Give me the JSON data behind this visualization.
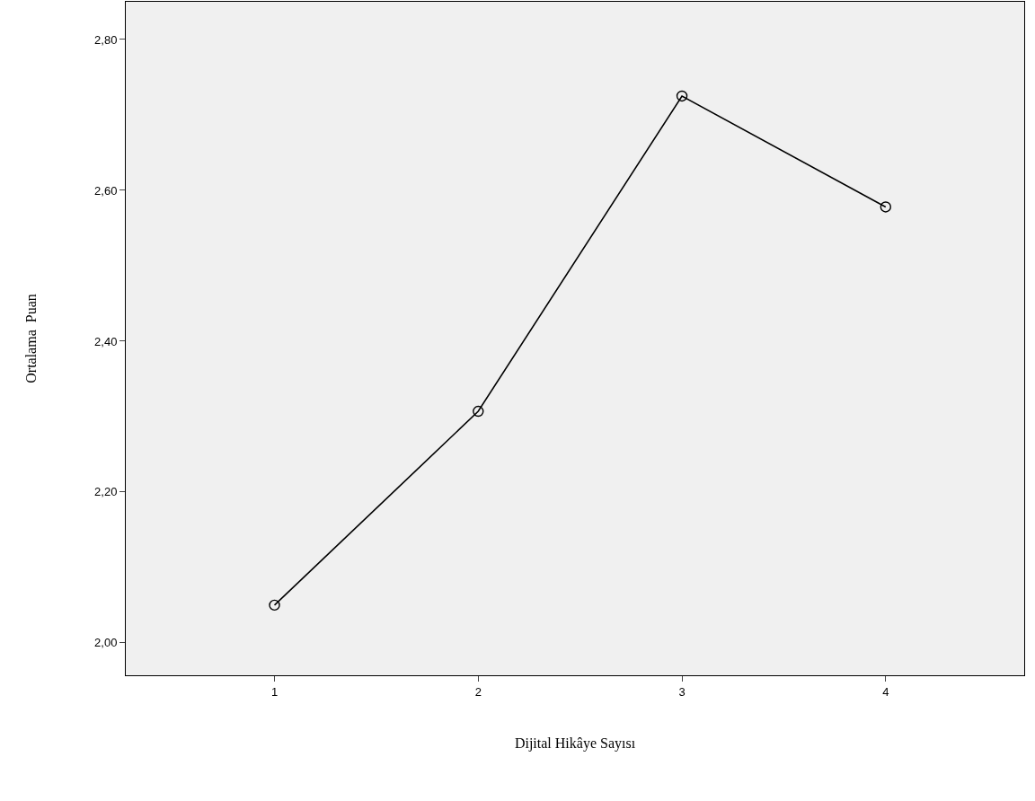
{
  "chart_data": {
    "type": "line",
    "xlabel": "Dijital Hikâye Sayısı",
    "ylabel": "Ortalama  Puan",
    "categories": [
      "1",
      "2",
      "3",
      "4"
    ],
    "series": [
      {
        "color": "#000000",
        "values": [
          2.05,
          2.307,
          2.725,
          2.578
        ]
      }
    ],
    "ylim": [
      1.957,
      2.85
    ],
    "yticks": [
      {
        "value": 2.0,
        "label": "2,00"
      },
      {
        "value": 2.2,
        "label": "2,20"
      },
      {
        "value": 2.4,
        "label": "2,40"
      },
      {
        "value": 2.6,
        "label": "2,60"
      },
      {
        "value": 2.8,
        "label": "2,80"
      }
    ],
    "marker": "circle",
    "line_style": "solid",
    "grid": false,
    "legend": false
  }
}
